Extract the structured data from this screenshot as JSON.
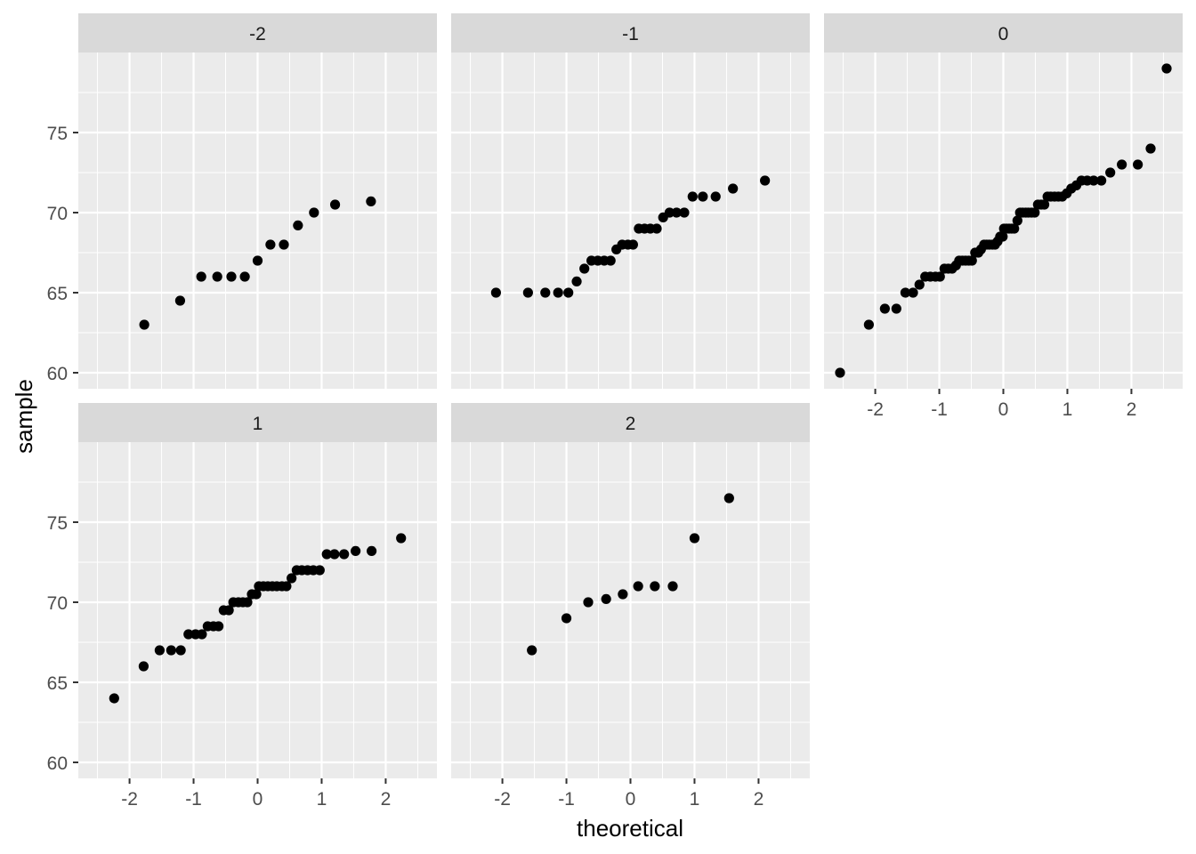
{
  "chart_data": {
    "type": "scatter",
    "xlabel": "theoretical",
    "ylabel": "sample",
    "xlim": [
      -2.8,
      2.8
    ],
    "ylim": [
      59,
      80
    ],
    "x_ticks": [
      -2,
      -1,
      0,
      1,
      2
    ],
    "x_tick_labels": [
      "-2",
      "-1",
      "0",
      "1",
      "2"
    ],
    "y_ticks": [
      60,
      65,
      70,
      75
    ],
    "y_tick_labels": [
      "60",
      "65",
      "70",
      "75"
    ],
    "grid": true,
    "colors": {
      "panel_background": "#EBEBEB",
      "strip_background": "#D9D9D9",
      "grid": "#FFFFFF",
      "point": "#000000",
      "text": "#4D4D4D",
      "title": "#000000"
    },
    "facets": [
      {
        "label": "-2",
        "points": [
          [
            -1.77,
            63
          ],
          [
            -1.21,
            64.5
          ],
          [
            -0.88,
            66
          ],
          [
            -0.63,
            66
          ],
          [
            -0.41,
            66
          ],
          [
            -0.2,
            66
          ],
          [
            0,
            67
          ],
          [
            0.2,
            68
          ],
          [
            0.41,
            68
          ],
          [
            0.63,
            69.2
          ],
          [
            0.88,
            70
          ],
          [
            1.21,
            70.5
          ],
          [
            1.77,
            70.7
          ]
        ]
      },
      {
        "label": "-1",
        "points": [
          [
            -2.1,
            65
          ],
          [
            -1.6,
            65
          ],
          [
            -1.33,
            65
          ],
          [
            -1.13,
            65
          ],
          [
            -0.97,
            65
          ],
          [
            -0.84,
            65.7
          ],
          [
            -0.72,
            66.5
          ],
          [
            -0.61,
            67
          ],
          [
            -0.51,
            67
          ],
          [
            -0.41,
            67
          ],
          [
            -0.31,
            67
          ],
          [
            -0.22,
            67.7
          ],
          [
            -0.13,
            68
          ],
          [
            -0.04,
            68
          ],
          [
            0.04,
            68
          ],
          [
            0.13,
            69
          ],
          [
            0.22,
            69
          ],
          [
            0.31,
            69
          ],
          [
            0.41,
            69
          ],
          [
            0.51,
            69.7
          ],
          [
            0.61,
            70
          ],
          [
            0.72,
            70
          ],
          [
            0.84,
            70
          ],
          [
            0.97,
            71
          ],
          [
            1.13,
            71
          ],
          [
            1.33,
            71
          ],
          [
            1.6,
            71.5
          ],
          [
            2.1,
            72
          ]
        ]
      },
      {
        "label": "0",
        "points": [
          [
            -2.55,
            60
          ],
          [
            -2.1,
            63
          ],
          [
            -1.85,
            64
          ],
          [
            -1.67,
            64
          ],
          [
            -1.53,
            65
          ],
          [
            -1.41,
            65
          ],
          [
            -1.31,
            65.5
          ],
          [
            -1.22,
            66
          ],
          [
            -1.14,
            66
          ],
          [
            -1.06,
            66
          ],
          [
            -0.99,
            66
          ],
          [
            -0.92,
            66.5
          ],
          [
            -0.86,
            66.5
          ],
          [
            -0.8,
            66.5
          ],
          [
            -0.74,
            66.7
          ],
          [
            -0.69,
            67
          ],
          [
            -0.64,
            67
          ],
          [
            -0.59,
            67
          ],
          [
            -0.54,
            67
          ],
          [
            -0.49,
            67
          ],
          [
            -0.44,
            67.5
          ],
          [
            -0.39,
            67.5
          ],
          [
            -0.35,
            67.7
          ],
          [
            -0.3,
            68
          ],
          [
            -0.26,
            68
          ],
          [
            -0.22,
            68
          ],
          [
            -0.17,
            68
          ],
          [
            -0.13,
            68
          ],
          [
            -0.09,
            68.2
          ],
          [
            -0.05,
            68.5
          ],
          [
            -0.01,
            68.5
          ],
          [
            0.01,
            69
          ],
          [
            0.05,
            69
          ],
          [
            0.09,
            69
          ],
          [
            0.13,
            69
          ],
          [
            0.17,
            69
          ],
          [
            0.22,
            69.5
          ],
          [
            0.26,
            70
          ],
          [
            0.3,
            70
          ],
          [
            0.35,
            70
          ],
          [
            0.39,
            70
          ],
          [
            0.44,
            70
          ],
          [
            0.49,
            70
          ],
          [
            0.54,
            70.5
          ],
          [
            0.59,
            70.5
          ],
          [
            0.64,
            70.5
          ],
          [
            0.69,
            71
          ],
          [
            0.74,
            71
          ],
          [
            0.8,
            71
          ],
          [
            0.86,
            71
          ],
          [
            0.92,
            71
          ],
          [
            0.99,
            71.2
          ],
          [
            1.06,
            71.5
          ],
          [
            1.14,
            71.7
          ],
          [
            1.22,
            72
          ],
          [
            1.31,
            72
          ],
          [
            1.41,
            72
          ],
          [
            1.53,
            72
          ],
          [
            1.67,
            72.5
          ],
          [
            1.85,
            73
          ],
          [
            2.1,
            73
          ],
          [
            2.3,
            74
          ],
          [
            2.55,
            79
          ]
        ]
      },
      {
        "label": "1",
        "points": [
          [
            -2.24,
            64
          ],
          [
            -1.78,
            66
          ],
          [
            -1.53,
            67
          ],
          [
            -1.35,
            67
          ],
          [
            -1.2,
            67
          ],
          [
            -1.08,
            68
          ],
          [
            -0.97,
            68
          ],
          [
            -0.87,
            68
          ],
          [
            -0.78,
            68.5
          ],
          [
            -0.69,
            68.5
          ],
          [
            -0.61,
            68.5
          ],
          [
            -0.53,
            69.5
          ],
          [
            -0.45,
            69.5
          ],
          [
            -0.38,
            70
          ],
          [
            -0.3,
            70
          ],
          [
            -0.23,
            70
          ],
          [
            -0.16,
            70
          ],
          [
            -0.09,
            70.5
          ],
          [
            -0.02,
            70.5
          ],
          [
            0.02,
            71
          ],
          [
            0.09,
            71
          ],
          [
            0.16,
            71
          ],
          [
            0.23,
            71
          ],
          [
            0.3,
            71
          ],
          [
            0.38,
            71
          ],
          [
            0.45,
            71
          ],
          [
            0.53,
            71.5
          ],
          [
            0.61,
            72
          ],
          [
            0.69,
            72
          ],
          [
            0.78,
            72
          ],
          [
            0.87,
            72
          ],
          [
            0.97,
            72
          ],
          [
            1.08,
            73
          ],
          [
            1.2,
            73
          ],
          [
            1.35,
            73
          ],
          [
            1.53,
            73.2
          ],
          [
            1.78,
            73.2
          ],
          [
            2.24,
            74
          ]
        ]
      },
      {
        "label": "2",
        "points": [
          [
            -1.54,
            67
          ],
          [
            -1.0,
            69
          ],
          [
            -0.66,
            70
          ],
          [
            -0.38,
            70.2
          ],
          [
            -0.12,
            70.5
          ],
          [
            0.12,
            71
          ],
          [
            0.38,
            71
          ],
          [
            0.66,
            71
          ],
          [
            1.0,
            74
          ],
          [
            1.54,
            76.5
          ]
        ]
      }
    ]
  }
}
